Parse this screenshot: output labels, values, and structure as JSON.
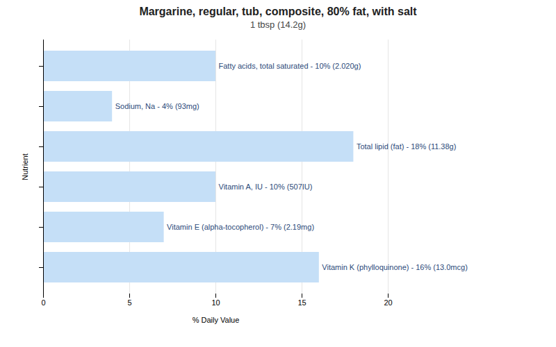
{
  "chart_data": {
    "type": "bar",
    "orientation": "horizontal",
    "title": "Margarine, regular, tub, composite, 80% fat, with salt",
    "subtitle": "1 tbsp (14.2g)",
    "categories": [
      "Fatty acids, total saturated - 10% (2.020g)",
      "Sodium, Na - 4% (93mg)",
      "Total lipid (fat) - 18% (11.38g)",
      "Vitamin A, IU - 10% (507IU)",
      "Vitamin E (alpha-tocopherol) - 7% (2.19mg)",
      "Vitamin K (phylloquinone) - 16% (13.0mcg)"
    ],
    "values": [
      10,
      4,
      18,
      10,
      7,
      16
    ],
    "color": "#c5dff7",
    "xlabel": "% Daily Value",
    "ylabel": "Nutrient",
    "xlim": [
      0,
      20
    ],
    "xticks": [
      0,
      5,
      10,
      15,
      20
    ],
    "grid": true,
    "tick_labels": "x"
  }
}
